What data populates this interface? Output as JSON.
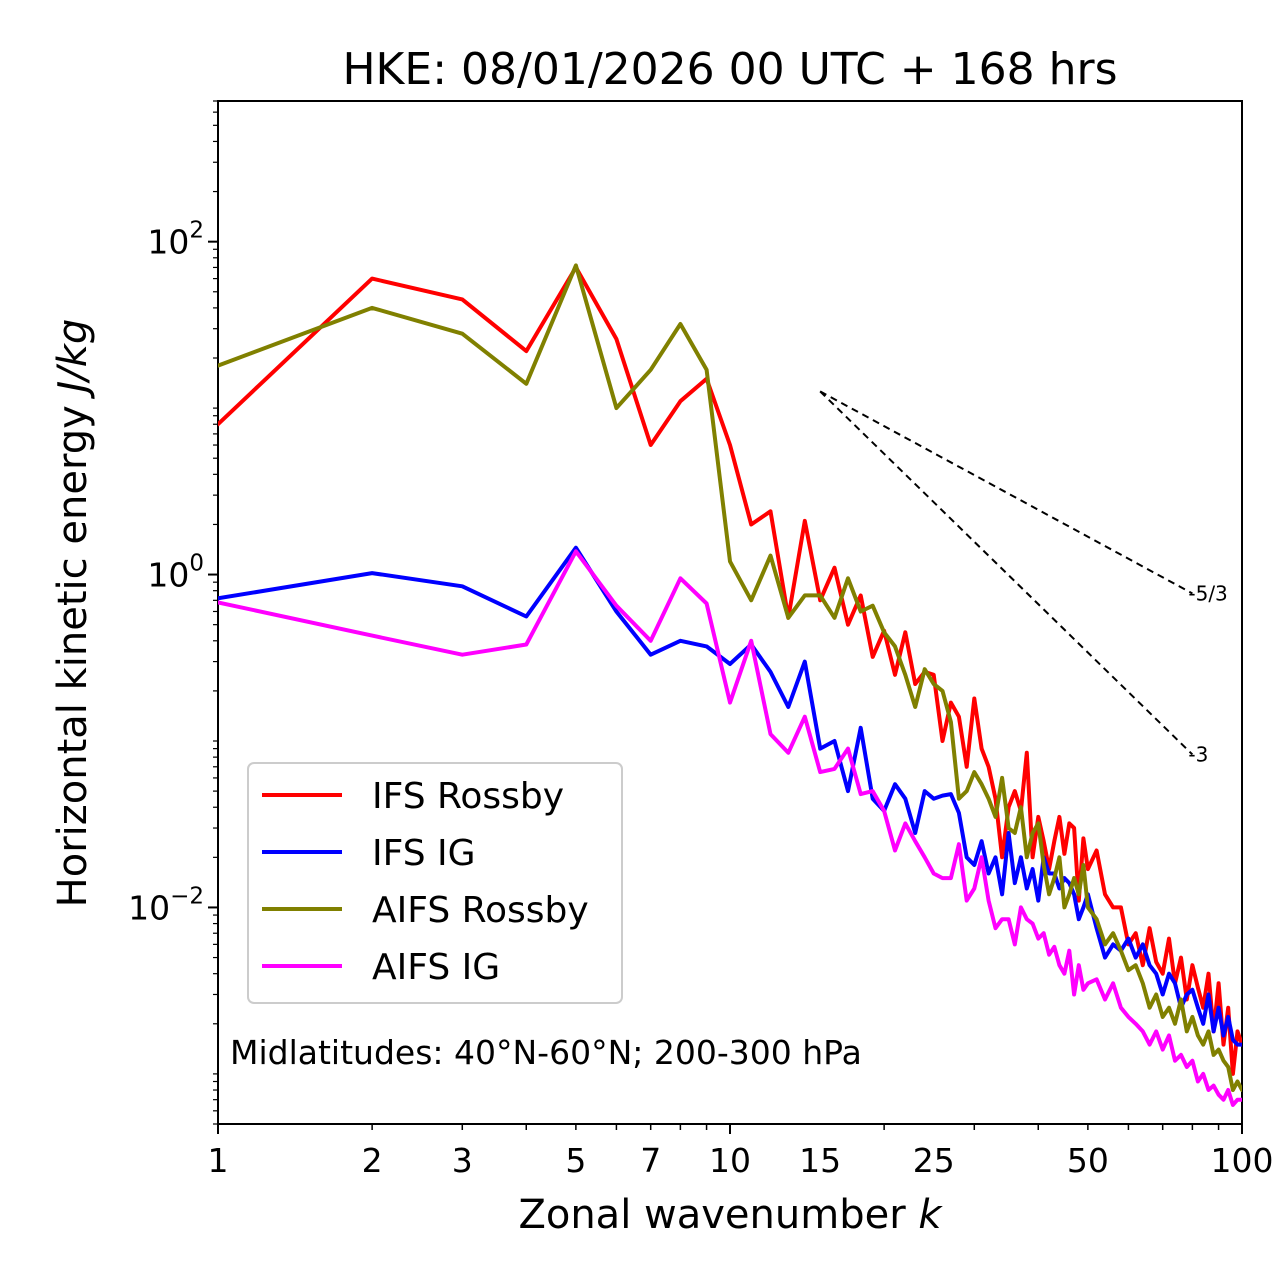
{
  "chart_data": {
    "type": "line",
    "title": "HKE: 08/01/2026 00 UTC + 168 hrs",
    "xlabel": "Zonal wavenumber",
    "xlabel_var": "k",
    "ylabel": "Horizontal kinetic energy",
    "ylabel_units": "J/kg",
    "xscale": "log",
    "yscale": "log",
    "xlim": [
      1,
      100
    ],
    "ylim": [
      0.0005,
      700
    ],
    "x_ticks": [
      1,
      2,
      3,
      5,
      7,
      10,
      15,
      25,
      50,
      100
    ],
    "x_tick_labels": [
      "1",
      "2",
      "3",
      "5",
      "7",
      "10",
      "15",
      "25",
      "50",
      "100"
    ],
    "y_ticks": [
      0.01,
      1,
      100
    ],
    "y_tick_labels": [
      {
        "base": "10",
        "exp": "−2"
      },
      {
        "base": "10",
        "exp": "0"
      },
      {
        "base": "10",
        "exp": "2"
      }
    ],
    "annotation": "Midlatitudes: 40°N-60°N; 200-300 hPa",
    "legend_position": "lower-left",
    "reference_lines": [
      {
        "slope_label": "-5/3",
        "x": [
          15,
          80
        ],
        "y": [
          12.6,
          0.77
        ]
      },
      {
        "slope_label": "-3",
        "x": [
          15,
          80
        ],
        "y": [
          12.6,
          0.083
        ]
      }
    ],
    "series": [
      {
        "name": "IFS Rossby",
        "color": "#ff0000",
        "x": [
          1,
          2,
          3,
          4,
          5,
          6,
          7,
          8,
          9,
          10,
          11,
          12,
          13,
          14,
          15,
          16,
          17,
          18,
          19,
          20,
          21,
          22,
          23,
          24,
          25,
          26,
          27,
          28,
          29,
          30,
          31,
          32,
          33,
          34,
          35,
          36,
          37,
          38,
          39,
          40,
          41,
          42,
          43,
          44,
          45,
          46,
          47,
          48,
          49,
          50,
          52,
          54,
          56,
          58,
          60,
          62,
          64,
          66,
          68,
          70,
          72,
          74,
          76,
          78,
          80,
          82,
          84,
          86,
          88,
          90,
          92,
          94,
          96,
          98,
          100
        ],
        "y": [
          8,
          60,
          45,
          22,
          70,
          26,
          6,
          11,
          15,
          6,
          2,
          2.4,
          0.55,
          2.1,
          0.7,
          1.1,
          0.5,
          0.75,
          0.32,
          0.46,
          0.25,
          0.45,
          0.22,
          0.26,
          0.25,
          0.1,
          0.17,
          0.14,
          0.07,
          0.18,
          0.09,
          0.07,
          0.045,
          0.02,
          0.04,
          0.05,
          0.038,
          0.085,
          0.02,
          0.035,
          0.025,
          0.017,
          0.025,
          0.035,
          0.021,
          0.032,
          0.03,
          0.011,
          0.026,
          0.017,
          0.022,
          0.012,
          0.01,
          0.01,
          0.006,
          0.007,
          0.0045,
          0.0075,
          0.0047,
          0.004,
          0.0065,
          0.0035,
          0.005,
          0.0028,
          0.0045,
          0.0033,
          0.0025,
          0.004,
          0.0018,
          0.0035,
          0.0015,
          0.0025,
          0.001,
          0.0018,
          0.0015
        ]
      },
      {
        "name": "IFS IG",
        "color": "#0000ff",
        "x": [
          1,
          2,
          3,
          4,
          5,
          6,
          7,
          8,
          9,
          10,
          11,
          12,
          13,
          14,
          15,
          16,
          17,
          18,
          19,
          20,
          21,
          22,
          23,
          24,
          25,
          26,
          27,
          28,
          29,
          30,
          31,
          32,
          33,
          34,
          35,
          36,
          37,
          38,
          39,
          40,
          41,
          42,
          43,
          44,
          45,
          46,
          47,
          48,
          49,
          50,
          52,
          54,
          56,
          58,
          60,
          62,
          64,
          66,
          68,
          70,
          72,
          74,
          76,
          78,
          80,
          82,
          84,
          86,
          88,
          90,
          92,
          94,
          96,
          98,
          100
        ],
        "y": [
          0.72,
          1.02,
          0.85,
          0.56,
          1.45,
          0.6,
          0.33,
          0.4,
          0.37,
          0.29,
          0.38,
          0.26,
          0.16,
          0.3,
          0.09,
          0.1,
          0.05,
          0.12,
          0.045,
          0.038,
          0.055,
          0.045,
          0.028,
          0.05,
          0.045,
          0.047,
          0.048,
          0.037,
          0.02,
          0.018,
          0.025,
          0.016,
          0.02,
          0.012,
          0.028,
          0.014,
          0.02,
          0.013,
          0.017,
          0.011,
          0.02,
          0.016,
          0.016,
          0.013,
          0.015,
          0.014,
          0.012,
          0.0085,
          0.01,
          0.012,
          0.0075,
          0.005,
          0.006,
          0.0055,
          0.0065,
          0.005,
          0.006,
          0.0045,
          0.004,
          0.003,
          0.004,
          0.0035,
          0.0025,
          0.003,
          0.0032,
          0.0025,
          0.002,
          0.003,
          0.0018,
          0.0025,
          0.0017,
          0.0022,
          0.0016,
          0.0015,
          0.0015
        ]
      },
      {
        "name": "AIFS Rossby",
        "color": "#808000",
        "x": [
          1,
          2,
          3,
          4,
          5,
          6,
          7,
          8,
          9,
          10,
          11,
          12,
          13,
          14,
          15,
          16,
          17,
          18,
          19,
          20,
          21,
          22,
          23,
          24,
          25,
          26,
          27,
          28,
          29,
          30,
          31,
          32,
          33,
          34,
          35,
          36,
          37,
          38,
          39,
          40,
          41,
          42,
          43,
          44,
          45,
          46,
          47,
          48,
          49,
          50,
          52,
          54,
          56,
          58,
          60,
          62,
          64,
          66,
          68,
          70,
          72,
          74,
          76,
          78,
          80,
          82,
          84,
          86,
          88,
          90,
          92,
          94,
          96,
          98,
          100
        ],
        "y": [
          18,
          40,
          28,
          14,
          72,
          10,
          17,
          32,
          17,
          1.2,
          0.7,
          1.3,
          0.55,
          0.75,
          0.75,
          0.55,
          0.95,
          0.6,
          0.65,
          0.45,
          0.37,
          0.25,
          0.16,
          0.27,
          0.22,
          0.2,
          0.13,
          0.045,
          0.05,
          0.065,
          0.055,
          0.045,
          0.035,
          0.06,
          0.03,
          0.028,
          0.04,
          0.02,
          0.028,
          0.032,
          0.018,
          0.012,
          0.015,
          0.02,
          0.01,
          0.012,
          0.015,
          0.012,
          0.018,
          0.01,
          0.0085,
          0.006,
          0.007,
          0.0055,
          0.0042,
          0.0045,
          0.0035,
          0.0025,
          0.003,
          0.0022,
          0.0025,
          0.002,
          0.0028,
          0.0018,
          0.0022,
          0.0017,
          0.0015,
          0.0018,
          0.0013,
          0.0014,
          0.0012,
          0.0011,
          0.0008,
          0.0009,
          0.0008
        ]
      },
      {
        "name": "AIFS IG",
        "color": "#ff00ff",
        "x": [
          1,
          2,
          3,
          4,
          5,
          6,
          7,
          8,
          9,
          10,
          11,
          12,
          13,
          14,
          15,
          16,
          17,
          18,
          19,
          20,
          21,
          22,
          23,
          24,
          25,
          26,
          27,
          28,
          29,
          30,
          31,
          32,
          33,
          34,
          35,
          36,
          37,
          38,
          39,
          40,
          41,
          42,
          43,
          44,
          45,
          46,
          47,
          48,
          49,
          50,
          52,
          54,
          56,
          58,
          60,
          62,
          64,
          66,
          68,
          70,
          72,
          74,
          76,
          78,
          80,
          82,
          84,
          86,
          88,
          90,
          92,
          94,
          96,
          98,
          100
        ],
        "y": [
          0.68,
          0.43,
          0.33,
          0.38,
          1.38,
          0.65,
          0.4,
          0.95,
          0.67,
          0.17,
          0.4,
          0.11,
          0.085,
          0.14,
          0.065,
          0.068,
          0.09,
          0.048,
          0.05,
          0.038,
          0.022,
          0.032,
          0.025,
          0.02,
          0.016,
          0.015,
          0.015,
          0.024,
          0.011,
          0.013,
          0.02,
          0.011,
          0.0075,
          0.0085,
          0.0085,
          0.006,
          0.01,
          0.0085,
          0.008,
          0.0065,
          0.007,
          0.0052,
          0.0058,
          0.0045,
          0.004,
          0.0055,
          0.003,
          0.0045,
          0.0032,
          0.0035,
          0.0037,
          0.0028,
          0.0035,
          0.0025,
          0.0022,
          0.002,
          0.0018,
          0.0015,
          0.0018,
          0.0014,
          0.0017,
          0.0012,
          0.0013,
          0.0011,
          0.0012,
          0.0009,
          0.001,
          0.0008,
          0.00085,
          0.00075,
          0.0007,
          0.0008,
          0.00065,
          0.0007,
          0.0007
        ]
      }
    ]
  }
}
